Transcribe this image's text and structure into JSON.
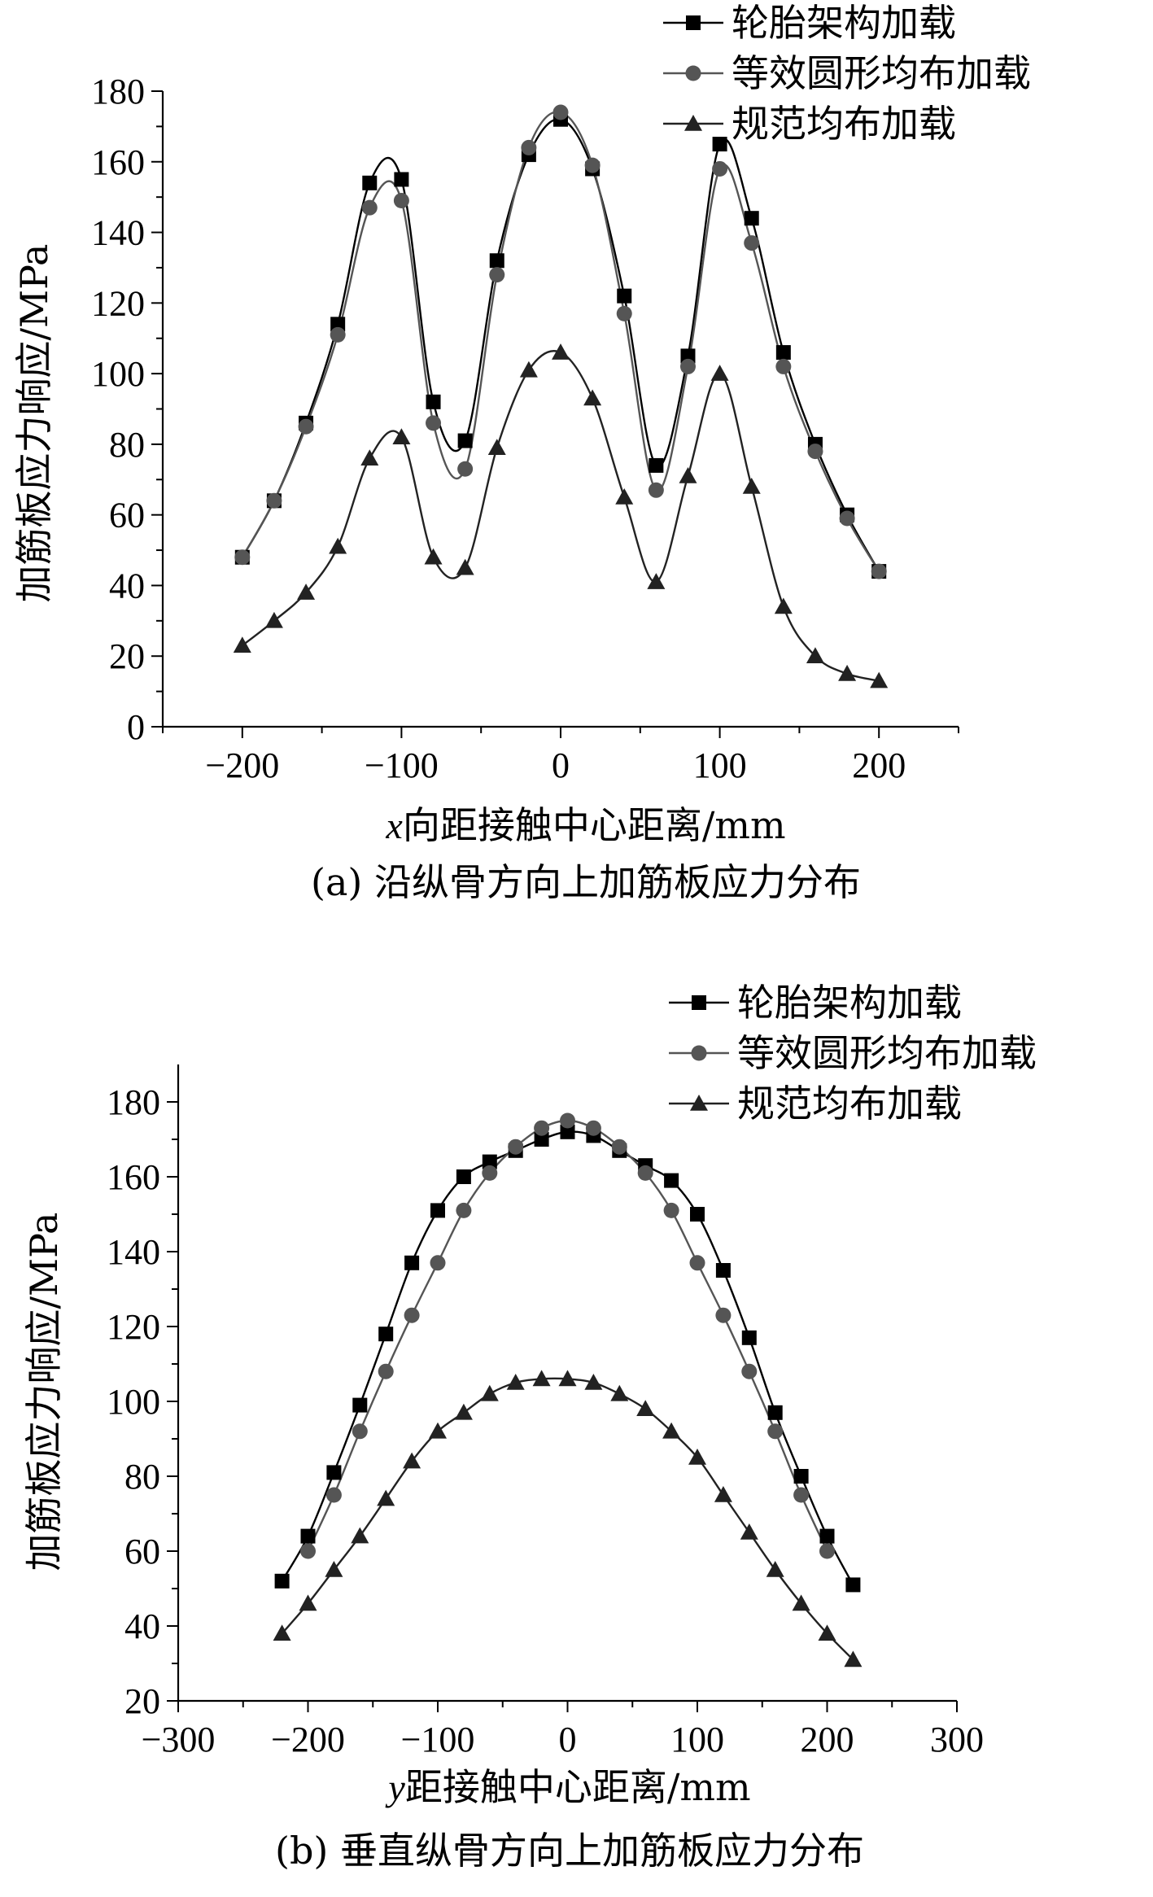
{
  "colors": {
    "series_1": "#000000",
    "series_2": "#555555",
    "series_3": "#222222"
  },
  "chart_data": [
    {
      "type": "line",
      "caption": "(a) 沿纵骨方向上加筋板应力分布",
      "xlabel_var": "x",
      "xlabel": "向距接触中心距离/mm",
      "ylabel": "加筋板应力响应/MPa",
      "xlim": [
        -250,
        250
      ],
      "ylim": [
        0,
        180
      ],
      "x_ticks": [
        -200,
        -100,
        0,
        100,
        200
      ],
      "x_tick_labels": [
        "−200",
        "−100",
        "0",
        "100",
        "200"
      ],
      "y_ticks": [
        0,
        20,
        40,
        60,
        80,
        100,
        120,
        140,
        160,
        180
      ],
      "y_tick_labels": [
        "0",
        "20",
        "40",
        "60",
        "80",
        "100",
        "120",
        "140",
        "160",
        "180"
      ],
      "legend_position": "top-right",
      "grid": false,
      "series": [
        {
          "name": "轮胎架构加载",
          "marker": "square",
          "x": [
            -200,
            -180,
            -160,
            -140,
            -120,
            -100,
            -80,
            -60,
            -40,
            -20,
            0,
            20,
            40,
            60,
            80,
            100,
            120,
            140,
            160,
            180,
            200
          ],
          "y": [
            48,
            64,
            86,
            114,
            154,
            155,
            92,
            81,
            132,
            162,
            172,
            158,
            122,
            74,
            105,
            165,
            144,
            106,
            80,
            60,
            44
          ]
        },
        {
          "name": "等效圆形均布加载",
          "marker": "circle",
          "x": [
            -200,
            -180,
            -160,
            -140,
            -120,
            -100,
            -80,
            -60,
            -40,
            -20,
            0,
            20,
            40,
            60,
            80,
            100,
            120,
            140,
            160,
            180,
            200
          ],
          "y": [
            48,
            64,
            85,
            111,
            147,
            149,
            86,
            73,
            128,
            164,
            174,
            159,
            117,
            67,
            102,
            158,
            137,
            102,
            78,
            59,
            44
          ]
        },
        {
          "name": "规范均布加载",
          "marker": "triangle",
          "x": [
            -200,
            -180,
            -160,
            -140,
            -120,
            -100,
            -80,
            -60,
            -40,
            -20,
            0,
            20,
            40,
            60,
            80,
            100,
            120,
            140,
            160,
            180,
            200
          ],
          "y": [
            23,
            30,
            38,
            51,
            76,
            82,
            48,
            45,
            79,
            101,
            106,
            93,
            65,
            41,
            71,
            100,
            68,
            34,
            20,
            15,
            13
          ]
        }
      ]
    },
    {
      "type": "line",
      "caption": "(b) 垂直纵骨方向上加筋板应力分布",
      "xlabel_var": "y",
      "xlabel": "距接触中心距离/mm",
      "ylabel": "加筋板应力响应/MPa",
      "xlim": [
        -300,
        300
      ],
      "ylim": [
        20,
        190
      ],
      "x_ticks": [
        -300,
        -200,
        -100,
        0,
        100,
        200,
        300
      ],
      "x_tick_labels": [
        "−300",
        "−200",
        "−100",
        "0",
        "100",
        "200",
        "300"
      ],
      "y_ticks": [
        20,
        40,
        60,
        80,
        100,
        120,
        140,
        160,
        180
      ],
      "y_tick_labels": [
        "20",
        "40",
        "60",
        "80",
        "100",
        "120",
        "140",
        "160",
        "180"
      ],
      "legend_position": "top-right",
      "grid": false,
      "series": [
        {
          "name": "轮胎架构加载",
          "marker": "square",
          "x": [
            -220,
            -200,
            -180,
            -160,
            -140,
            -120,
            -100,
            -80,
            -60,
            -40,
            -20,
            0,
            20,
            40,
            60,
            80,
            100,
            120,
            140,
            160,
            180,
            200,
            220
          ],
          "y": [
            52,
            64,
            81,
            99,
            118,
            137,
            151,
            160,
            164,
            167,
            170,
            172,
            171,
            167,
            163,
            159,
            150,
            135,
            117,
            97,
            80,
            64,
            51
          ]
        },
        {
          "name": "等效圆形均布加载",
          "marker": "circle",
          "x": [
            -200,
            -180,
            -160,
            -140,
            -120,
            -100,
            -80,
            -60,
            -40,
            -20,
            0,
            20,
            40,
            60,
            80,
            100,
            120,
            140,
            160,
            180,
            200
          ],
          "y": [
            60,
            75,
            92,
            108,
            123,
            137,
            151,
            161,
            168,
            173,
            175,
            173,
            168,
            161,
            151,
            137,
            123,
            108,
            92,
            75,
            60
          ]
        },
        {
          "name": "规范均布加载",
          "marker": "triangle",
          "x": [
            -220,
            -200,
            -180,
            -160,
            -140,
            -120,
            -100,
            -80,
            -60,
            -40,
            -20,
            0,
            20,
            40,
            60,
            80,
            100,
            120,
            140,
            160,
            180,
            200,
            220
          ],
          "y": [
            38,
            46,
            55,
            64,
            74,
            84,
            92,
            97,
            102,
            105,
            106,
            106,
            105,
            102,
            98,
            92,
            85,
            75,
            65,
            55,
            46,
            38,
            31
          ]
        }
      ]
    }
  ]
}
